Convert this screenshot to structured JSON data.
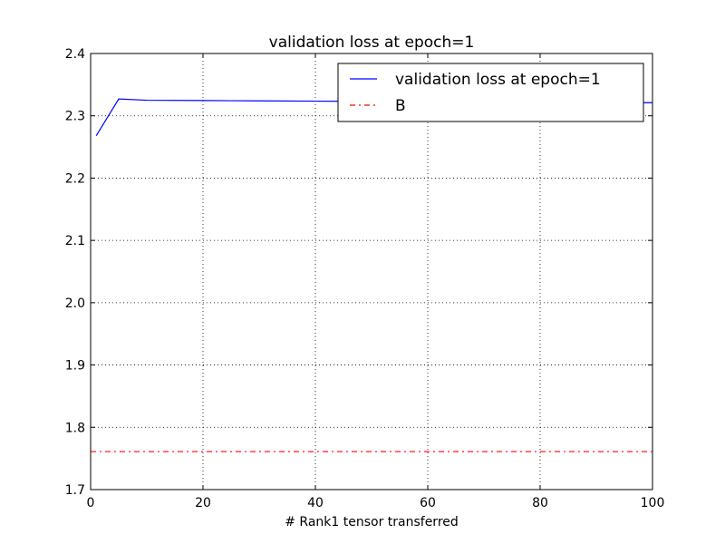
{
  "chart_data": {
    "type": "line",
    "title": "validation loss at epoch=1",
    "xlabel": "# Rank1 tensor transferred",
    "ylabel": "",
    "xlim": [
      0,
      100
    ],
    "ylim": [
      1.7,
      2.4
    ],
    "xticks": [
      0,
      20,
      40,
      60,
      80,
      100
    ],
    "yticks": [
      1.7,
      1.8,
      1.9,
      2.0,
      2.1,
      2.2,
      2.3,
      2.4
    ],
    "xtick_labels": [
      "0",
      "20",
      "40",
      "60",
      "80",
      "100"
    ],
    "ytick_labels": [
      "1.7",
      "1.8",
      "1.9",
      "2.0",
      "2.1",
      "2.2",
      "2.3",
      "2.4"
    ],
    "grid": true,
    "legend_position": "top-right",
    "series": [
      {
        "name": "validation loss at epoch=1",
        "color": "#0000ff",
        "style": "solid",
        "x": [
          1,
          5,
          10,
          20,
          30,
          40,
          50,
          60,
          70,
          80,
          90,
          100
        ],
        "y": [
          2.268,
          2.327,
          2.325,
          2.3245,
          2.324,
          2.3235,
          2.323,
          2.3225,
          2.322,
          2.3215,
          2.321,
          2.321
        ]
      },
      {
        "name": "B",
        "color": "#ff0000",
        "style": "dashdot",
        "x": [
          0,
          100
        ],
        "y": [
          1.761,
          1.761
        ]
      }
    ]
  }
}
